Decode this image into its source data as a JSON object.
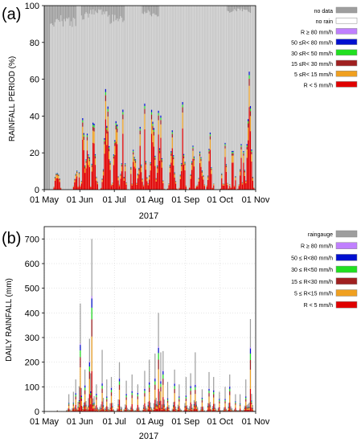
{
  "chart_data": [
    {
      "type": "bar",
      "panel_label": "(a)",
      "ylabel": "RAINFALL PERIOD (%)",
      "xlabel": "2017",
      "ylim": [
        0,
        100
      ],
      "yticks": [
        0,
        20,
        40,
        60,
        80,
        100
      ],
      "xlim_days": [
        1,
        184
      ],
      "xticks": [
        {
          "day": 1,
          "label": "01 May"
        },
        {
          "day": 32,
          "label": "01 Jun"
        },
        {
          "day": 62,
          "label": "01 Jul"
        },
        {
          "day": 93,
          "label": "01 Aug"
        },
        {
          "day": 124,
          "label": "01 Sep"
        },
        {
          "day": 154,
          "label": "01 Oct"
        },
        {
          "day": 185,
          "label": "01 Nov"
        }
      ],
      "legend": [
        {
          "label": "no data",
          "color": "#9e9e9e"
        },
        {
          "label": "no rain",
          "color": "#ffffff"
        },
        {
          "label": "R ≥ 80 mm/h",
          "color": "#c080ff"
        },
        {
          "label": "50 ≤R< 80 mm/h",
          "color": "#0010d0"
        },
        {
          "label": "30 ≤R< 50 mm/h",
          "color": "#20e020"
        },
        {
          "label": "15 ≤R< 30 mm/h",
          "color": "#a02020"
        },
        {
          "label": "5 ≤R< 15 mm/h",
          "color": "#f0a020"
        },
        {
          "label": "R < 5 mm/h",
          "color": "#e00000"
        }
      ],
      "series_note": "stacked daily percentage of time per rain-rate class",
      "peaks": [
        {
          "day": 12,
          "rain": 20
        },
        {
          "day": 29,
          "rain": 26
        },
        {
          "day": 34,
          "rain": 42
        },
        {
          "day": 37,
          "rain": 47
        },
        {
          "day": 39,
          "rain": 38
        },
        {
          "day": 44,
          "rain": 50
        },
        {
          "day": 54,
          "rain": 59
        },
        {
          "day": 56,
          "rain": 55
        },
        {
          "day": 63,
          "rain": 54
        },
        {
          "day": 69,
          "rain": 46
        },
        {
          "day": 78,
          "rain": 45
        },
        {
          "day": 84,
          "rain": 39
        },
        {
          "day": 89,
          "rain": 78
        },
        {
          "day": 95,
          "rain": 64
        },
        {
          "day": 101,
          "rain": 56
        },
        {
          "day": 112,
          "rain": 51
        },
        {
          "day": 121,
          "rain": 51
        },
        {
          "day": 130,
          "rain": 28
        },
        {
          "day": 137,
          "rain": 35
        },
        {
          "day": 145,
          "rain": 33
        },
        {
          "day": 157,
          "rain": 43
        },
        {
          "day": 165,
          "rain": 35
        },
        {
          "day": 173,
          "rain": 32
        },
        {
          "day": 179,
          "rain": 73
        }
      ],
      "nodata_days": [
        {
          "from": 1,
          "to": 5,
          "nodata": 100
        },
        {
          "from": 6,
          "to": 28,
          "nodata": 12
        },
        {
          "from": 33,
          "to": 40,
          "nodata": 8
        },
        {
          "from": 41,
          "to": 55,
          "nodata": 5
        },
        {
          "from": 56,
          "to": 70,
          "nodata": 10
        },
        {
          "from": 86,
          "to": 100,
          "nodata": 6
        },
        {
          "from": 160,
          "to": 180,
          "nodata": 4
        }
      ]
    },
    {
      "type": "bar",
      "panel_label": "(b)",
      "ylabel": "DAILY RAINFALL (mm)",
      "xlabel": "2017",
      "ylim": [
        0,
        750
      ],
      "yticks": [
        0,
        100,
        200,
        300,
        400,
        500,
        600,
        700
      ],
      "xlim_days": [
        1,
        184
      ],
      "xticks": [
        {
          "day": 1,
          "label": "01 May"
        },
        {
          "day": 32,
          "label": "01 Jun"
        },
        {
          "day": 62,
          "label": "01 Jul"
        },
        {
          "day": 93,
          "label": "01 Aug"
        },
        {
          "day": 124,
          "label": "01 Sep"
        },
        {
          "day": 154,
          "label": "01 Oct"
        },
        {
          "day": 185,
          "label": "01 Nov"
        }
      ],
      "legend": [
        {
          "label": "raingauge",
          "color": "#9e9e9e"
        },
        {
          "label": "R ≥ 80 mm/h",
          "color": "#c080ff"
        },
        {
          "label": "50 ≤ R<80 mm/h",
          "color": "#0010d0"
        },
        {
          "label": "30 ≤ R<50 mm/h",
          "color": "#20e020"
        },
        {
          "label": "15 ≤ R<30 mm/h",
          "color": "#a02020"
        },
        {
          "label": "5 ≤ R<15 mm/h",
          "color": "#f0a020"
        },
        {
          "label": "R < 5 mm/h",
          "color": "#e00000"
        }
      ],
      "gauge_peaks": [
        {
          "day": 12,
          "value": 5
        },
        {
          "day": 22,
          "value": 70
        },
        {
          "day": 26,
          "value": 80
        },
        {
          "day": 28,
          "value": 130
        },
        {
          "day": 32,
          "value": 438
        },
        {
          "day": 36,
          "value": 170
        },
        {
          "day": 40,
          "value": 295
        },
        {
          "day": 42,
          "value": 700
        },
        {
          "day": 46,
          "value": 110
        },
        {
          "day": 51,
          "value": 250
        },
        {
          "day": 55,
          "value": 130
        },
        {
          "day": 59,
          "value": 140
        },
        {
          "day": 66,
          "value": 200
        },
        {
          "day": 72,
          "value": 125
        },
        {
          "day": 77,
          "value": 150
        },
        {
          "day": 82,
          "value": 110
        },
        {
          "day": 88,
          "value": 165
        },
        {
          "day": 92,
          "value": 210
        },
        {
          "day": 97,
          "value": 235
        },
        {
          "day": 100,
          "value": 400
        },
        {
          "day": 102,
          "value": 240
        },
        {
          "day": 104,
          "value": 245
        },
        {
          "day": 108,
          "value": 120
        },
        {
          "day": 114,
          "value": 170
        },
        {
          "day": 118,
          "value": 110
        },
        {
          "day": 124,
          "value": 140
        },
        {
          "day": 128,
          "value": 155
        },
        {
          "day": 132,
          "value": 240
        },
        {
          "day": 138,
          "value": 90
        },
        {
          "day": 144,
          "value": 160
        },
        {
          "day": 148,
          "value": 140
        },
        {
          "day": 153,
          "value": 80
        },
        {
          "day": 158,
          "value": 100
        },
        {
          "day": 162,
          "value": 150
        },
        {
          "day": 167,
          "value": 70
        },
        {
          "day": 171,
          "value": 70
        },
        {
          "day": 176,
          "value": 130
        },
        {
          "day": 180,
          "value": 375
        }
      ]
    }
  ]
}
